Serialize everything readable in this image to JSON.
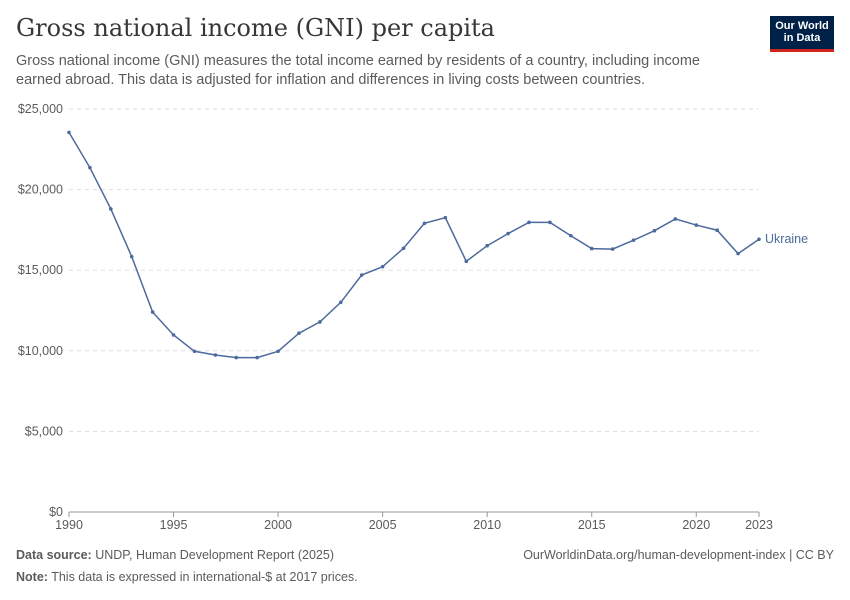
{
  "header": {
    "title": "Gross national income (GNI) per capita",
    "subtitle": "Gross national income (GNI) measures the total income earned by residents of a country, including income earned abroad. This data is adjusted for inflation and differences in living costs between countries.",
    "logo": "Our World in Data"
  },
  "footer": {
    "source_label": "Data source:",
    "source": "UNDP, Human Development Report (2025)",
    "url": "OurWorldinData.org/human-development-index | CC BY",
    "note_label": "Note:",
    "note": "This data is expressed in international-$ at 2017 prices."
  },
  "chart_data": {
    "type": "line",
    "title": "Gross national income (GNI) per capita",
    "xlabel": "",
    "ylabel": "",
    "xlim": [
      1990,
      2023
    ],
    "ylim": [
      0,
      25000
    ],
    "x_ticks": [
      "1990",
      "1995",
      "2000",
      "2005",
      "2010",
      "2015",
      "2020",
      "2023"
    ],
    "y_ticks": [
      "$0",
      "$5,000",
      "$10,000",
      "$15,000",
      "$20,000",
      "$25,000"
    ],
    "grid": "horizontal dashed",
    "legend": "inline label at line end",
    "colors": {
      "Ukraine": "#4c6a9c"
    },
    "series": [
      {
        "name": "Ukraine",
        "x": [
          1990,
          1991,
          1992,
          1993,
          1994,
          1995,
          1996,
          1997,
          1998,
          1999,
          2000,
          2001,
          2002,
          2003,
          2004,
          2005,
          2006,
          2007,
          2008,
          2009,
          2010,
          2011,
          2012,
          2013,
          2014,
          2015,
          2016,
          2017,
          2018,
          2019,
          2020,
          2021,
          2022,
          2023
        ],
        "values": [
          23550,
          21360,
          18800,
          15840,
          12400,
          10980,
          9970,
          9740,
          9580,
          9580,
          9970,
          11090,
          11790,
          13010,
          14700,
          15220,
          16360,
          17910,
          18260,
          15550,
          16520,
          17270,
          17970,
          17970,
          17140,
          16340,
          16310,
          16860,
          17450,
          18180,
          17800,
          17480,
          16030,
          16920
        ]
      }
    ]
  }
}
